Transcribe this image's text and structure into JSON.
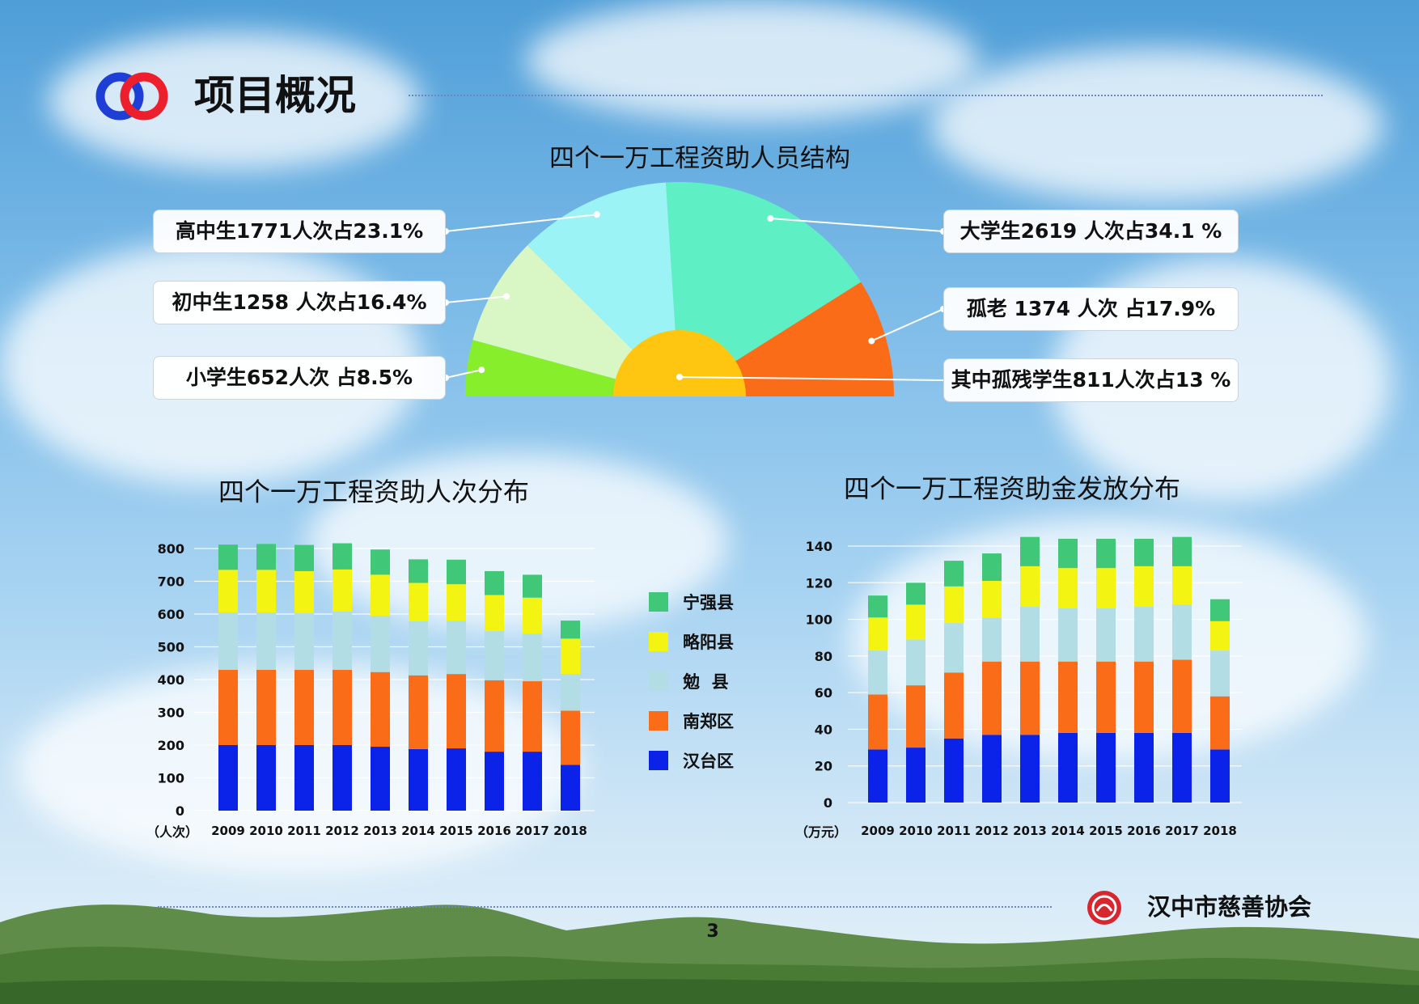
{
  "header": {
    "title": "项目概况"
  },
  "footer": {
    "org": "汉中市慈善协会",
    "page_number": "3"
  },
  "colors": {
    "ningqiang": "#40c878",
    "lueyang": "#f4f413",
    "mian": "#b2dde4",
    "nanzheng": "#fb6c18",
    "hantai": "#0b22e8"
  },
  "chart_data": [
    {
      "type": "pie",
      "title": "四个一万工程资助人员结构",
      "labels": [
        "高中生1771人次占23.1%",
        "初中生1258 人次占16.4%",
        "小学生652人次 占8.5%",
        "大学生2619 人次占34.1 %",
        "孤老 1374 人次 占17.9%",
        "其中孤残学生811人次占13 %"
      ],
      "slices": [
        {
          "name": "小学生",
          "value": 652,
          "percent": 8.5,
          "color": "#86ee2a"
        },
        {
          "name": "初中生",
          "value": 1258,
          "percent": 16.4,
          "color": "#d8f7c5"
        },
        {
          "name": "高中生",
          "value": 1771,
          "percent": 23.1,
          "color": "#9cf3f6"
        },
        {
          "name": "大学生",
          "value": 2619,
          "percent": 34.1,
          "color": "#5ef0c4"
        },
        {
          "name": "孤老",
          "value": 1374,
          "percent": 17.9,
          "color": "#fb6c18"
        }
      ],
      "inner": {
        "name": "孤残学生",
        "value": 811,
        "percent": 13,
        "color": "#fec511"
      }
    },
    {
      "type": "bar",
      "stacked": true,
      "title": "四个一万工程资助人次分布",
      "unit_label": "（人次）",
      "categories": [
        "2009",
        "2010",
        "2011",
        "2012",
        "2013",
        "2014",
        "2015",
        "2016",
        "2017",
        "2018"
      ],
      "ylim": [
        0,
        800
      ],
      "yticks": [
        0,
        100,
        200,
        300,
        400,
        500,
        600,
        700,
        800
      ],
      "series": [
        {
          "name": "汉台区",
          "color": "#0b22e8",
          "values": [
            200,
            200,
            200,
            200,
            195,
            188,
            190,
            180,
            180,
            140
          ]
        },
        {
          "name": "南郑区",
          "color": "#fb6c18",
          "values": [
            230,
            230,
            230,
            230,
            228,
            225,
            227,
            218,
            215,
            165
          ]
        },
        {
          "name": "勉  县",
          "color": "#b2dde4",
          "values": [
            175,
            175,
            173,
            178,
            172,
            165,
            162,
            150,
            145,
            112
          ]
        },
        {
          "name": "略阳县",
          "color": "#f4f413",
          "values": [
            130,
            130,
            128,
            128,
            125,
            117,
            112,
            110,
            110,
            108
          ]
        },
        {
          "name": "宁强县",
          "color": "#40c878",
          "values": [
            77,
            79,
            80,
            80,
            77,
            72,
            75,
            73,
            70,
            55
          ]
        }
      ],
      "legend_order": [
        "宁强县",
        "略阳县",
        "勉  县",
        "南郑区",
        "汉台区"
      ]
    },
    {
      "type": "bar",
      "stacked": true,
      "title": "四个一万工程资助金发放分布",
      "unit_label": "（万元）",
      "categories": [
        "2009",
        "2010",
        "2011",
        "2012",
        "2013",
        "2014",
        "2015",
        "2016",
        "2017",
        "2018"
      ],
      "ylim": [
        0,
        140
      ],
      "yticks": [
        0,
        20,
        40,
        60,
        80,
        100,
        120,
        140
      ],
      "series": [
        {
          "name": "汉台区",
          "color": "#0b22e8",
          "values": [
            29,
            30,
            35,
            37,
            37,
            38,
            38,
            38,
            38,
            29
          ]
        },
        {
          "name": "南郑区",
          "color": "#fb6c18",
          "values": [
            30,
            34,
            36,
            40,
            40,
            39,
            39,
            39,
            40,
            29
          ]
        },
        {
          "name": "勉  县",
          "color": "#b2dde4",
          "values": [
            24,
            25,
            27,
            24,
            30,
            29,
            29,
            30,
            30,
            25
          ]
        },
        {
          "name": "略阳县",
          "color": "#f4f413",
          "values": [
            18,
            19,
            20,
            20,
            22,
            22,
            22,
            22,
            21,
            16
          ]
        },
        {
          "name": "宁强县",
          "color": "#40c878",
          "values": [
            12,
            12,
            14,
            15,
            16,
            16,
            16,
            15,
            16,
            12
          ]
        }
      ]
    }
  ]
}
